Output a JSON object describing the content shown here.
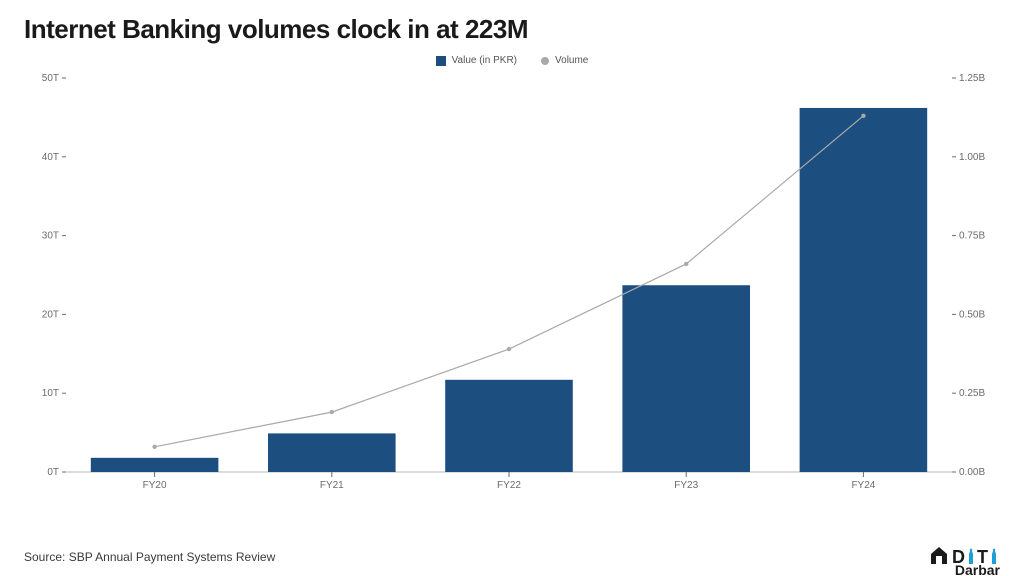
{
  "title": "Internet Banking volumes clock in at 223M",
  "title_fontsize": 26,
  "title_color": "#1a1a1a",
  "legend": {
    "items": [
      {
        "label": "Value (in PKR)",
        "kind": "bar",
        "color": "#1c4e80"
      },
      {
        "label": "Volume",
        "kind": "dot",
        "color": "#a9a9a9"
      }
    ],
    "fontsize": 10,
    "color": "#555555"
  },
  "chart": {
    "type": "bar_line_dual_axis",
    "background_color": "#ffffff",
    "categories": [
      "FY20",
      "FY21",
      "FY22",
      "FY23",
      "FY24"
    ],
    "bars": {
      "series_name": "Value (in PKR)",
      "values_trillion": [
        1.8,
        4.9,
        11.7,
        23.7,
        46.2
      ],
      "color": "#1c4e80",
      "bar_width_ratio": 0.72
    },
    "line": {
      "series_name": "Volume",
      "values_billion": [
        0.08,
        0.19,
        0.39,
        0.66,
        1.13
      ],
      "color": "#a9a9a9",
      "line_width": 1.2,
      "marker": "dot",
      "marker_size": 2.2
    },
    "left_axis": {
      "label_suffix": "T",
      "min": 0,
      "max": 50,
      "step": 10,
      "ticks": [
        "0T",
        "10T",
        "20T",
        "30T",
        "40T",
        "50T"
      ],
      "fontsize": 10,
      "color": "#6b6b6b"
    },
    "right_axis": {
      "label_suffix": "B",
      "min": 0,
      "max": 1.25,
      "step": 0.25,
      "ticks": [
        "0.00B",
        "0.25B",
        "0.50B",
        "0.75B",
        "1.00B",
        "1.25B"
      ],
      "fontsize": 10,
      "color": "#6b6b6b"
    },
    "x_axis": {
      "fontsize": 10,
      "color": "#6b6b6b",
      "tick_length": 5
    },
    "grid": false
  },
  "footer": {
    "text": "Source: SBP Annual Payment Systems Review",
    "fontsize": 12,
    "color": "#3a3a3a"
  },
  "logo": {
    "prefix": "D",
    "middle": "T",
    "suffix": "Darbar",
    "accent_color": "#1c9ed6",
    "text_color": "#1a1a1a"
  }
}
